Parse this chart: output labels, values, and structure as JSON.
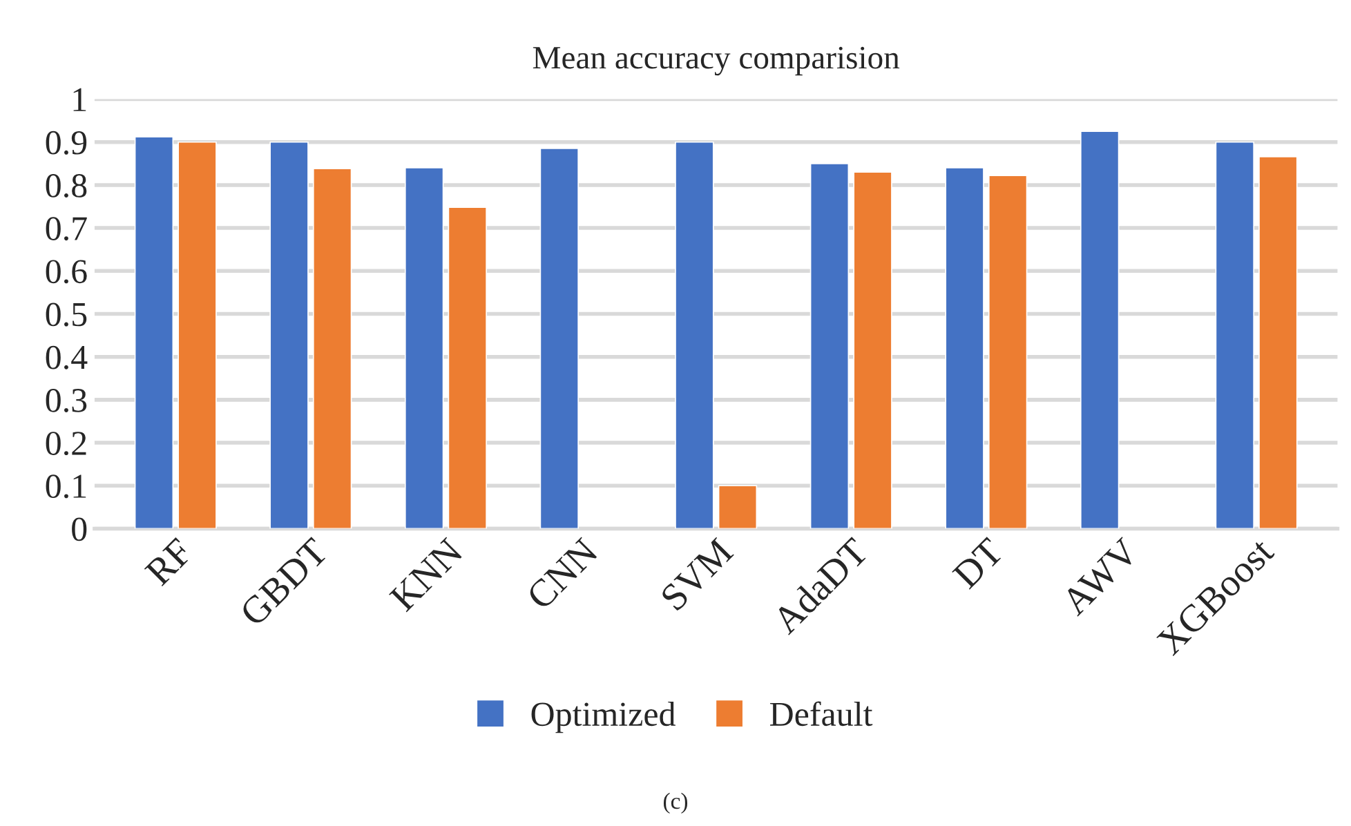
{
  "chart_data": {
    "type": "bar",
    "title": "Mean accuracy comparision",
    "categories": [
      "RF",
      "GBDT",
      "KNN",
      "CNN",
      "SVM",
      "AdaDT",
      "DT",
      "AWV",
      "XGBoost"
    ],
    "series": [
      {
        "name": "Optimized",
        "color": "#4472c4",
        "values": [
          0.912,
          0.9,
          0.84,
          0.885,
          0.9,
          0.85,
          0.84,
          0.925,
          0.9
        ]
      },
      {
        "name": "Default",
        "color": "#ed7d31",
        "values": [
          0.9,
          0.838,
          0.748,
          null,
          0.1,
          0.83,
          0.822,
          null,
          0.866
        ]
      }
    ],
    "ylim": [
      0,
      1
    ],
    "yticks": [
      {
        "value": 0,
        "label": "0"
      },
      0.1,
      0.2,
      0.3,
      0.4,
      0.5,
      0.6,
      0.7,
      0.8,
      0.9,
      {
        "value": 1,
        "label": "1"
      }
    ],
    "grid": "y",
    "legend": "bottom",
    "annotations": [
      "(c)"
    ]
  }
}
